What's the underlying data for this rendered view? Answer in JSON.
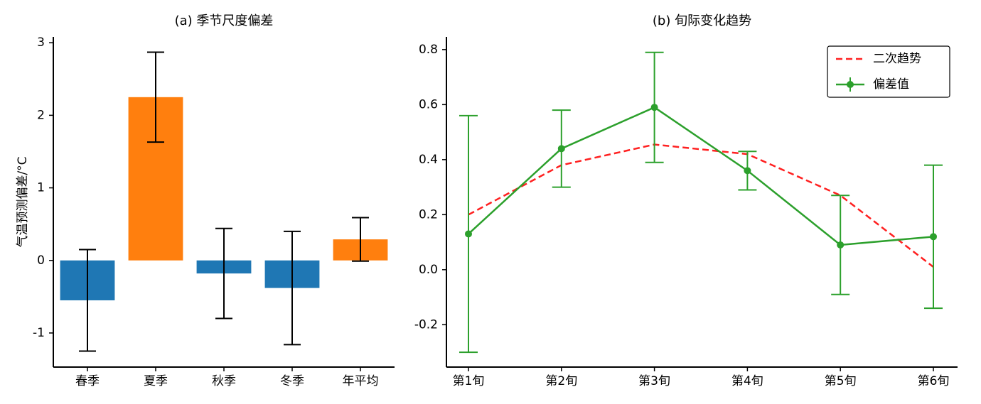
{
  "chart_data": [
    {
      "type": "bar",
      "title": "(a) 季节尺度偏差",
      "ylabel": "气温预测偏差/°C",
      "categories": [
        "春季",
        "夏季",
        "秋季",
        "冬季",
        "年平均"
      ],
      "values": [
        -0.55,
        2.25,
        -0.18,
        -0.38,
        0.29
      ],
      "errors": [
        0.7,
        0.62,
        0.62,
        0.78,
        0.3
      ],
      "colors": [
        "#1f77b4",
        "#ff7f0e",
        "#1f77b4",
        "#1f77b4",
        "#ff7f0e"
      ],
      "ylim": [
        -1.47,
        3.08
      ],
      "yticks": [
        -1,
        0,
        1,
        2,
        3
      ]
    },
    {
      "type": "line",
      "title": "(b) 旬际变化趋势",
      "categories": [
        "第1旬",
        "第2旬",
        "第3旬",
        "第4旬",
        "第5旬",
        "第6旬"
      ],
      "series": [
        {
          "name": "二次趋势",
          "color": "#ff2020",
          "dashed": true,
          "values": [
            0.2,
            0.38,
            0.455,
            0.42,
            0.27,
            0.01
          ]
        },
        {
          "name": "偏差值",
          "color": "#2ca02c",
          "values": [
            0.13,
            0.44,
            0.59,
            0.36,
            0.09,
            0.12
          ],
          "errors": [
            0.43,
            0.14,
            0.2,
            0.07,
            0.18,
            0.26
          ]
        }
      ],
      "ylim": [
        -0.354,
        0.846
      ],
      "yticks": [
        -0.2,
        {
          "value": 0,
          "label": "0.0"
        },
        0.2,
        0.4,
        0.6,
        0.8
      ],
      "legend": "upper right"
    }
  ]
}
